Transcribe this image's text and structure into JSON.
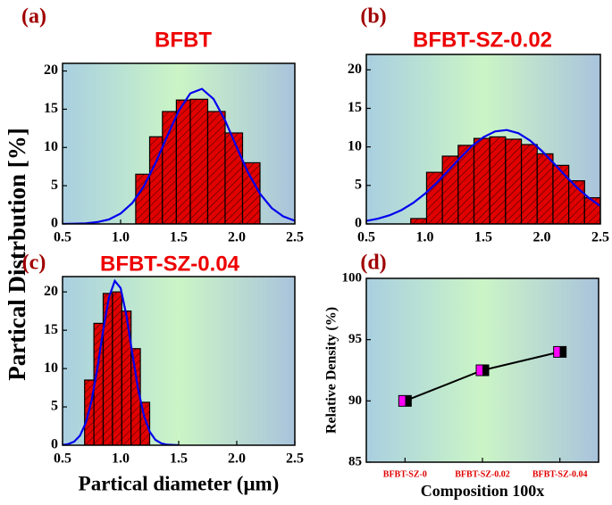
{
  "chart_data": [
    {
      "type": "histogram",
      "panel_label": "(a)",
      "title": "BFBT",
      "ylabel": "Partical Distrbution [%]",
      "bins": [
        1.13,
        1.25,
        1.36,
        1.48,
        1.6,
        1.75,
        1.9,
        2.05,
        2.2
      ],
      "values": [
        6.5,
        11.4,
        14.7,
        16.2,
        16.3,
        14.7,
        11.9,
        8.0
      ],
      "color": "#e00000",
      "fit": {
        "color": "#0000ee",
        "x": [
          0.5,
          0.6,
          0.7,
          0.8,
          0.9,
          1.0,
          1.1,
          1.2,
          1.3,
          1.4,
          1.5,
          1.6,
          1.7,
          1.8,
          1.9,
          2.0,
          2.1,
          2.2,
          2.3,
          2.4,
          2.5
        ],
        "values": [
          0.0,
          0.03,
          0.08,
          0.24,
          0.6,
          1.36,
          2.73,
          4.92,
          7.95,
          11.45,
          14.78,
          17.08,
          17.66,
          16.34,
          13.52,
          10.02,
          6.64,
          3.95,
          2.09,
          0.99,
          0.42
        ]
      },
      "xlim": [
        0.5,
        2.5
      ],
      "xticks": [
        0.5,
        {
          "value": 1,
          "label": "1.0"
        },
        1.5,
        {
          "value": 2,
          "label": "2.0"
        },
        2.5
      ],
      "ylim": [
        0,
        21
      ],
      "yticks": [
        0,
        5,
        10,
        15,
        20
      ]
    },
    {
      "type": "histogram",
      "panel_label": "(b)",
      "title": "BFBT-SZ-0.02",
      "bins": [
        0.88,
        1.015,
        1.15,
        1.285,
        1.42,
        1.555,
        1.69,
        1.825,
        1.96,
        2.095,
        2.23,
        2.365,
        2.5
      ],
      "values": [
        0.7,
        6.7,
        8.8,
        10.2,
        11.1,
        11.3,
        11.0,
        10.3,
        9.1,
        7.6,
        5.6,
        3.4
      ],
      "color": "#e00000",
      "fit": {
        "color": "#0000ee",
        "x": [
          0.5,
          0.6,
          0.7,
          0.8,
          0.9,
          1.0,
          1.1,
          1.2,
          1.3,
          1.4,
          1.5,
          1.6,
          1.7,
          1.8,
          1.9,
          2.0,
          2.1,
          2.2,
          2.3,
          2.4,
          2.5
        ],
        "values": [
          0.39,
          0.68,
          1.14,
          1.8,
          2.72,
          3.9,
          5.32,
          6.91,
          8.54,
          10.06,
          11.26,
          12.01,
          12.19,
          11.77,
          10.82,
          9.47,
          7.9,
          6.26,
          4.73,
          3.39,
          2.32
        ]
      },
      "xlim": [
        0.5,
        2.5
      ],
      "xticks": [
        0.5,
        {
          "value": 1,
          "label": "1.0"
        },
        1.5,
        {
          "value": 2,
          "label": "2.0"
        },
        2.5
      ],
      "ylim": [
        0,
        22
      ],
      "yticks": [
        0,
        5,
        10,
        15,
        20
      ]
    },
    {
      "type": "histogram",
      "panel_label": "(c)",
      "title": "BFBT-SZ-0.04",
      "xlabel": "Partical diameter (μm)",
      "bins": [
        0.69,
        0.77,
        0.85,
        0.93,
        1.01,
        1.09,
        1.17,
        1.25
      ],
      "values": [
        8.5,
        15.9,
        19.8,
        20.0,
        17.5,
        12.6,
        5.6
      ],
      "color": "#e00000",
      "fit": {
        "color": "#0000ee",
        "x": [
          0.5,
          0.55,
          0.6,
          0.65,
          0.7,
          0.75,
          0.8,
          0.85,
          0.9,
          0.95,
          1.0,
          1.05,
          1.1,
          1.15,
          1.2,
          1.25,
          1.3,
          1.35,
          1.4,
          1.5
        ],
        "values": [
          0.04,
          0.15,
          0.46,
          1.25,
          2.91,
          5.81,
          10.08,
          15.03,
          19.32,
          21.44,
          20.51,
          16.92,
          12.04,
          7.38,
          3.91,
          1.78,
          0.7,
          0.24,
          0.07,
          0.0
        ]
      },
      "xlim": [
        0.5,
        2.5
      ],
      "xticks": [
        0.5,
        {
          "value": 1,
          "label": "1.0"
        },
        1.5,
        {
          "value": 2,
          "label": "2.0"
        },
        2.5
      ],
      "ylim": [
        0,
        22
      ],
      "yticks": [
        0,
        5,
        10,
        15,
        20
      ]
    },
    {
      "type": "line",
      "panel_label": "(d)",
      "ylabel": "Relative Density (%)",
      "xlabel": "Composition 100x",
      "categories": [
        "BFBT-SZ-0",
        "BFBT-SZ-0.02",
        "BFBT-SZ-0.04"
      ],
      "values": [
        90,
        92.5,
        94
      ],
      "color": "#ff00ff",
      "line_color": "#000000",
      "category_color": "#e00000",
      "ylim": [
        85,
        100
      ],
      "yticks": [
        85,
        90,
        95,
        100
      ]
    }
  ]
}
